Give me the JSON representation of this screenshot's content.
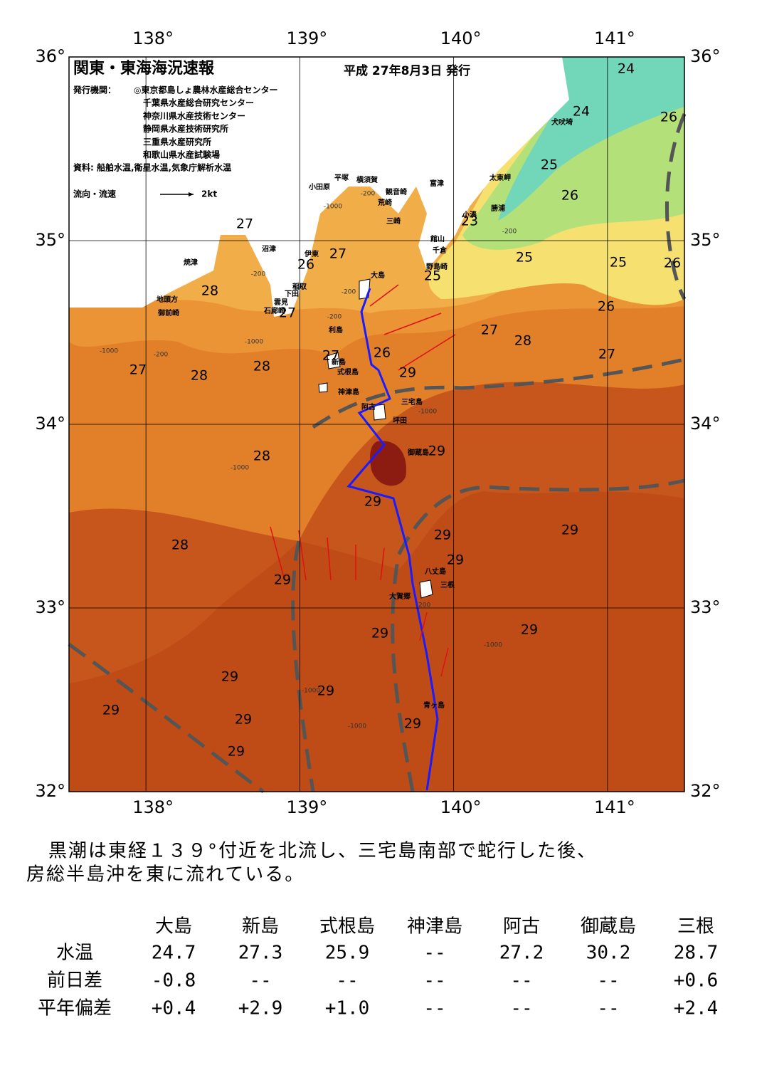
{
  "header": {
    "title": "関東・東海海況速報",
    "date": "平成 27年8月3日 発行",
    "issuer_label": "発行機関：",
    "issuers": [
      "◎東京都島しょ農林水産総合センター",
      "千葉県水産総合研究センター",
      "神奈川県水産技術センター",
      "静岡県水産技術研究所",
      "三重県水産研究所",
      "和歌山県水産試験場"
    ],
    "source": "資料: 船舶水温,衛星水温,気象庁解析水温",
    "legend_label": "流向・流速",
    "legend_scale": "2kt"
  },
  "map": {
    "xlim": [
      137.5,
      141.5
    ],
    "ylim": [
      32,
      36
    ],
    "xticks": [
      {
        "value": 138,
        "label": "138°"
      },
      {
        "value": 139,
        "label": "139°"
      },
      {
        "value": 140,
        "label": "140°"
      },
      {
        "value": 141,
        "label": "141°"
      }
    ],
    "yticks": [
      {
        "value": 32,
        "label": "32°"
      },
      {
        "value": 33,
        "label": "33°"
      },
      {
        "value": 34,
        "label": "34°"
      },
      {
        "value": 35,
        "label": "35°"
      },
      {
        "value": 36,
        "label": "36°"
      }
    ],
    "temperature_labels": [
      24,
      24,
      26,
      25,
      26,
      23,
      25,
      25,
      26,
      27,
      27,
      26,
      25,
      28,
      27,
      26,
      27,
      28,
      27,
      26,
      29,
      27,
      27,
      28,
      28,
      28,
      29,
      29,
      29,
      29,
      28,
      29,
      29,
      29,
      29,
      29,
      29,
      29,
      29,
      29,
      29
    ],
    "place_labels": [
      "犬吠埼",
      "太東岬",
      "勝浦",
      "小湊",
      "富津",
      "横須賀",
      "観音崎",
      "平塚",
      "荒崎",
      "三崎",
      "小田原",
      "館山",
      "千倉",
      "野島崎",
      "沼津",
      "伊東",
      "大島",
      "焼津",
      "稲取",
      "下田",
      "雲見",
      "石廊崎",
      "地頭方",
      "御前崎",
      "利島",
      "新島",
      "式根島",
      "神津島",
      "三宅島",
      "阿古",
      "坪田",
      "御蔵島",
      "八丈島",
      "三根",
      "大賀郷",
      "青ヶ島"
    ],
    "depth_labels": [
      "-200",
      "-1000",
      "-200",
      "-200",
      "-200",
      "-1000",
      "-200",
      "-1000",
      "-1000",
      "-1000",
      "-1000",
      "-1000",
      "-1000",
      "-200",
      "-200"
    ]
  },
  "description": [
    "黒潮は東経１３９°付近を北流し、三宅島南部で蛇行した後、",
    "房総半島沖を東に流れている。"
  ],
  "table": {
    "header_row": [
      "大島",
      "新島",
      "式根島",
      "神津島",
      "阿古",
      "御蔵島",
      "三根"
    ],
    "rows": [
      {
        "label": "水温",
        "cells": [
          "24.7",
          "27.3",
          "25.9",
          "--",
          "27.2",
          "30.2",
          "28.7"
        ]
      },
      {
        "label": "前日差",
        "cells": [
          "-0.8",
          "--",
          "--",
          "--",
          "--",
          "--",
          "+0.6"
        ]
      },
      {
        "label": "平年偏差",
        "cells": [
          "+0.4",
          "+2.9",
          "+1.0",
          "--",
          "--",
          "--",
          "+2.4"
        ]
      }
    ]
  }
}
